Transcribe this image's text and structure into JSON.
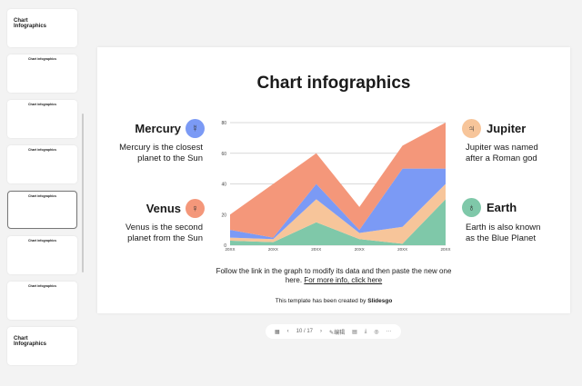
{
  "thumbnails": [
    {
      "title": "Chart Infographics",
      "big": true
    },
    {
      "title": "Chart infographics"
    },
    {
      "title": "Chart infographics"
    },
    {
      "title": "Chart infographics"
    },
    {
      "title": "Chart infographics",
      "selected": true
    },
    {
      "title": "Chart infographics"
    },
    {
      "title": "Chart infographics"
    },
    {
      "title": "Chart Infographics",
      "big": true
    }
  ],
  "slide": {
    "title": "Chart infographics",
    "planets": [
      {
        "name": "Mercury",
        "desc": "Mercury is the closest planet to the Sun",
        "color": "#7b9af5",
        "icon": "mercury-symbol-icon"
      },
      {
        "name": "Venus",
        "desc": "Venus is the second planet from the Sun",
        "color": "#f4977a",
        "icon": "venus-symbol-icon"
      },
      {
        "name": "Jupiter",
        "desc": "Jupiter was named after a Roman god",
        "color": "#f7c59a",
        "icon": "jupiter-symbol-icon"
      },
      {
        "name": "Earth",
        "desc": "Earth is also known as the Blue Planet",
        "color": "#7fc8a9",
        "icon": "earth-symbol-icon"
      }
    ],
    "note": "Follow the link in the graph to modify its data and then paste the new one here.",
    "link": "For more info, click here",
    "credit_prefix": "This template has been created by ",
    "credit_brand": "Slidesgo"
  },
  "chart_data": {
    "type": "area",
    "stacked": true,
    "categories": [
      "20XX",
      "20XX",
      "20XX",
      "20XX",
      "20XX",
      "20XX"
    ],
    "ylim": [
      0,
      80
    ],
    "yticks": [
      "0",
      "20",
      "40",
      "60",
      "80"
    ],
    "grid": true,
    "series": [
      {
        "values": [
          3,
          2,
          15,
          4,
          1,
          30
        ],
        "color": "#7fc8a9"
      },
      {
        "values": [
          2,
          2,
          15,
          4,
          11,
          10
        ],
        "color": "#f7c59a"
      },
      {
        "values": [
          5,
          1,
          10,
          2,
          38,
          10
        ],
        "color": "#7b9af5"
      },
      {
        "values": [
          10,
          35,
          20,
          15,
          15,
          30
        ],
        "color": "#f4977a"
      }
    ]
  },
  "toolbar": {
    "page": "10 / 17",
    "edit": "编辑"
  }
}
